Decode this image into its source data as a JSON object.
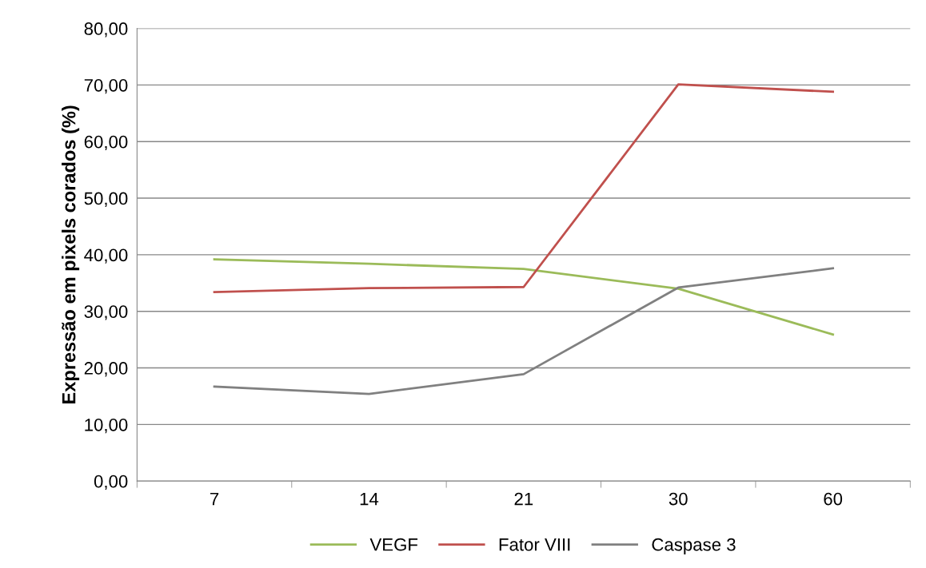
{
  "chart_data": {
    "type": "line",
    "ylabel": "Expressão em pixels corados (%)",
    "categories": [
      "7",
      "14",
      "21",
      "30",
      "60"
    ],
    "series": [
      {
        "name": "VEGF",
        "color": "#9bbb59",
        "values": [
          39.2,
          38.4,
          37.5,
          34.0,
          25.9
        ]
      },
      {
        "name": "Fator VIII",
        "color": "#c0504d",
        "values": [
          33.4,
          34.1,
          34.3,
          70.1,
          68.8
        ]
      },
      {
        "name": "Caspase 3",
        "color": "#808080",
        "values": [
          16.7,
          15.4,
          18.9,
          34.2,
          37.6
        ]
      }
    ],
    "ylim": [
      0,
      80
    ],
    "yticks": [
      {
        "value": 0,
        "label": "0,00"
      },
      {
        "value": 10,
        "label": "10,00"
      },
      {
        "value": 20,
        "label": "20,00"
      },
      {
        "value": 30,
        "label": "30,00"
      },
      {
        "value": 40,
        "label": "40,00"
      },
      {
        "value": 50,
        "label": "50,00"
      },
      {
        "value": 60,
        "label": "60,00"
      },
      {
        "value": 70,
        "label": "70,00"
      },
      {
        "value": 80,
        "label": "80,00"
      }
    ],
    "grid": "y",
    "legend": "bottom",
    "marker": "none",
    "line_style": "solid"
  }
}
